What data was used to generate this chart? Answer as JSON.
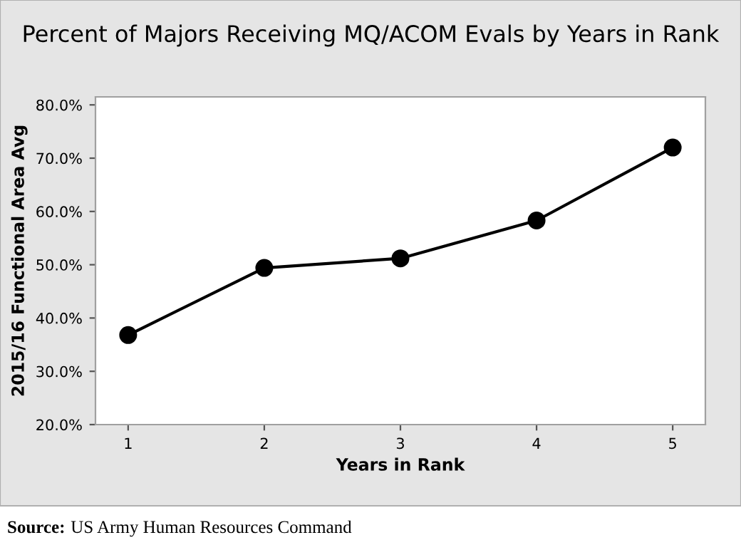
{
  "chart_data": {
    "type": "line",
    "title": "Percent of Majors Receiving MQ/ACOM Evals by Years in Rank",
    "xlabel": "Years in Rank",
    "ylabel": "2015/16 Functional Area Avg",
    "x": [
      1,
      2,
      3,
      4,
      5
    ],
    "series": [
      {
        "color": "#000000",
        "values": [
          36.8,
          49.4,
          51.2,
          58.3,
          72.0
        ]
      }
    ],
    "xlim": [
      0.76,
      5.24
    ],
    "xticks": [
      1,
      2,
      3,
      4,
      5
    ],
    "ylim": [
      20,
      81.5
    ],
    "yticks": [
      {
        "value": 20,
        "label": "20.0%"
      },
      {
        "value": 30,
        "label": "30.0%"
      },
      {
        "value": 40,
        "label": "40.0%"
      },
      {
        "value": 50,
        "label": "50.0%"
      },
      {
        "value": 60,
        "label": "60.0%"
      },
      {
        "value": 70,
        "label": "70.0%"
      },
      {
        "value": 80,
        "label": "80.0%"
      }
    ],
    "marker": "circle",
    "line_style": "solid",
    "grid": false,
    "legend": false,
    "annotations": [
      "Source: US Army Human Resources Command"
    ]
  }
}
